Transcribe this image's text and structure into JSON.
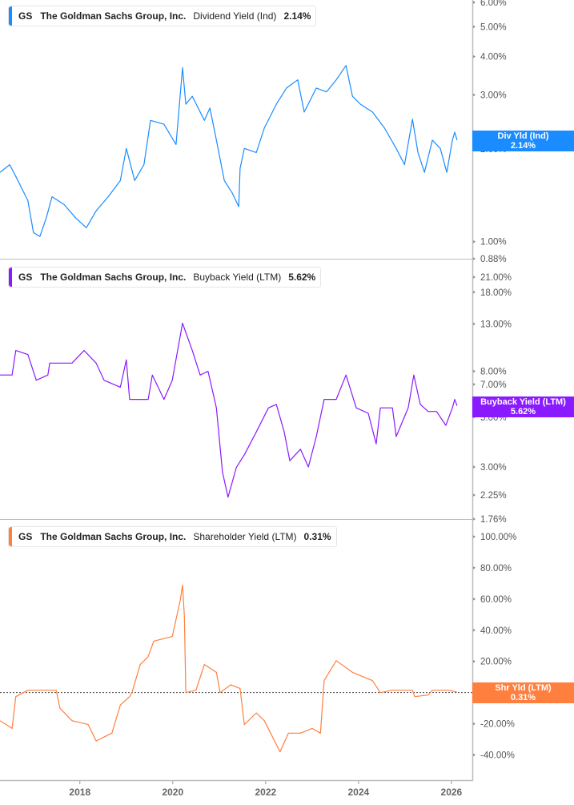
{
  "ticker": "GS",
  "company": "The Goldman Sachs Group, Inc.",
  "chart_data": [
    {
      "type": "line",
      "metric": "Dividend Yield (Ind)",
      "current_value": "2.14%",
      "value_box_label": "Div Yld (Ind)",
      "color": "#1a8cff",
      "y_scale": "log",
      "ylim": [
        0.88,
        6.0
      ],
      "y_ticks": [
        6.0,
        5.0,
        4.0,
        3.0,
        2.0,
        1.0,
        0.88
      ],
      "y_tick_labels": [
        "6.00%",
        "5.00%",
        "4.00%",
        "3.00%",
        "2.00%",
        "1.00%",
        "0.88%"
      ],
      "points": [
        [
          2016.28,
          1.68
        ],
        [
          2016.49,
          1.78
        ],
        [
          2016.62,
          1.63
        ],
        [
          2016.88,
          1.36
        ],
        [
          2017.0,
          1.07
        ],
        [
          2017.14,
          1.04
        ],
        [
          2017.28,
          1.2
        ],
        [
          2017.4,
          1.4
        ],
        [
          2017.66,
          1.32
        ],
        [
          2017.92,
          1.19
        ],
        [
          2018.14,
          1.11
        ],
        [
          2018.35,
          1.26
        ],
        [
          2018.61,
          1.4
        ],
        [
          2018.87,
          1.58
        ],
        [
          2019.0,
          2.01
        ],
        [
          2019.18,
          1.58
        ],
        [
          2019.38,
          1.78
        ],
        [
          2019.52,
          2.48
        ],
        [
          2019.81,
          2.41
        ],
        [
          2020.07,
          2.07
        ],
        [
          2020.21,
          3.68
        ],
        [
          2020.28,
          2.8
        ],
        [
          2020.42,
          2.97
        ],
        [
          2020.68,
          2.48
        ],
        [
          2020.8,
          2.72
        ],
        [
          2020.94,
          2.14
        ],
        [
          2021.11,
          1.58
        ],
        [
          2021.28,
          1.44
        ],
        [
          2021.42,
          1.3
        ],
        [
          2021.45,
          1.73
        ],
        [
          2021.54,
          2.01
        ],
        [
          2021.8,
          1.95
        ],
        [
          2021.97,
          2.34
        ],
        [
          2022.23,
          2.8
        ],
        [
          2022.45,
          3.16
        ],
        [
          2022.69,
          3.36
        ],
        [
          2022.83,
          2.64
        ],
        [
          2023.09,
          3.16
        ],
        [
          2023.31,
          3.07
        ],
        [
          2023.52,
          3.36
        ],
        [
          2023.73,
          3.74
        ],
        [
          2023.87,
          2.97
        ],
        [
          2024.04,
          2.8
        ],
        [
          2024.3,
          2.64
        ],
        [
          2024.56,
          2.34
        ],
        [
          2024.81,
          2.01
        ],
        [
          2024.99,
          1.78
        ],
        [
          2025.16,
          2.5
        ],
        [
          2025.28,
          1.95
        ],
        [
          2025.42,
          1.68
        ],
        [
          2025.59,
          2.14
        ],
        [
          2025.76,
          2.01
        ],
        [
          2025.9,
          1.68
        ],
        [
          2026.02,
          2.14
        ],
        [
          2026.07,
          2.27
        ],
        [
          2026.12,
          2.14
        ]
      ]
    },
    {
      "type": "line",
      "metric": "Buyback Yield (LTM)",
      "current_value": "5.62%",
      "value_box_label": "Buyback Yield (LTM)",
      "color": "#8a1aff",
      "y_scale": "log",
      "ylim": [
        1.76,
        21.0
      ],
      "y_ticks": [
        21.0,
        18.0,
        13.0,
        8.0,
        7.0,
        5.0,
        3.0,
        2.25,
        1.76
      ],
      "y_tick_labels": [
        "21.00%",
        "18.00%",
        "13.00%",
        "8.00%",
        "7.00%",
        "5.00%",
        "3.00%",
        "2.25%",
        "1.76%"
      ],
      "points": [
        [
          2016.28,
          7.7
        ],
        [
          2016.54,
          7.7
        ],
        [
          2016.62,
          9.9
        ],
        [
          2016.88,
          9.5
        ],
        [
          2017.06,
          7.3
        ],
        [
          2017.31,
          7.7
        ],
        [
          2017.35,
          8.7
        ],
        [
          2017.83,
          8.7
        ],
        [
          2018.09,
          9.9
        ],
        [
          2018.35,
          8.7
        ],
        [
          2018.52,
          7.3
        ],
        [
          2018.87,
          6.8
        ],
        [
          2019.0,
          9.0
        ],
        [
          2019.07,
          6.0
        ],
        [
          2019.47,
          6.0
        ],
        [
          2019.56,
          7.7
        ],
        [
          2019.81,
          6.0
        ],
        [
          2019.99,
          7.3
        ],
        [
          2020.21,
          13.1
        ],
        [
          2020.42,
          9.9
        ],
        [
          2020.59,
          7.7
        ],
        [
          2020.76,
          8.0
        ],
        [
          2020.94,
          5.5
        ],
        [
          2021.07,
          2.85
        ],
        [
          2021.19,
          2.2
        ],
        [
          2021.37,
          2.99
        ],
        [
          2021.54,
          3.4
        ],
        [
          2021.8,
          4.3
        ],
        [
          2022.06,
          5.5
        ],
        [
          2022.23,
          5.7
        ],
        [
          2022.4,
          4.3
        ],
        [
          2022.52,
          3.2
        ],
        [
          2022.75,
          3.6
        ],
        [
          2022.92,
          3.0
        ],
        [
          2023.09,
          4.1
        ],
        [
          2023.26,
          6.0
        ],
        [
          2023.52,
          6.0
        ],
        [
          2023.73,
          7.7
        ],
        [
          2023.95,
          5.5
        ],
        [
          2024.21,
          5.2
        ],
        [
          2024.38,
          3.8
        ],
        [
          2024.47,
          5.5
        ],
        [
          2024.73,
          5.5
        ],
        [
          2024.81,
          4.1
        ],
        [
          2025.07,
          5.5
        ],
        [
          2025.19,
          7.7
        ],
        [
          2025.33,
          5.7
        ],
        [
          2025.5,
          5.3
        ],
        [
          2025.68,
          5.3
        ],
        [
          2025.88,
          4.6
        ],
        [
          2026.02,
          5.5
        ],
        [
          2026.07,
          6.0
        ],
        [
          2026.12,
          5.62
        ]
      ]
    },
    {
      "type": "line",
      "metric": "Shareholder Yield (LTM)",
      "current_value": "0.31%",
      "value_box_label": "Shr Yld (LTM)",
      "color": "#ff7f3f",
      "y_scale": "linear",
      "ylim": [
        -50,
        100
      ],
      "y_ticks": [
        100,
        80,
        60,
        40,
        20,
        0,
        -20,
        -40
      ],
      "y_tick_labels": [
        "100.00%",
        "80.00%",
        "60.00%",
        "40.00%",
        "20.00%",
        "0.00%",
        "-20.00%",
        "-40.00%"
      ],
      "zero_line": true,
      "points": [
        [
          2016.28,
          -18
        ],
        [
          2016.54,
          -23
        ],
        [
          2016.62,
          -2.6
        ],
        [
          2016.88,
          1.5
        ],
        [
          2017.49,
          1.5
        ],
        [
          2017.57,
          -10
        ],
        [
          2017.83,
          -18
        ],
        [
          2018.18,
          -20.5
        ],
        [
          2018.35,
          -31
        ],
        [
          2018.69,
          -26
        ],
        [
          2018.87,
          -8
        ],
        [
          2019.07,
          -2.6
        ],
        [
          2019.12,
          0
        ],
        [
          2019.3,
          18
        ],
        [
          2019.47,
          23
        ],
        [
          2019.59,
          33
        ],
        [
          2019.99,
          36
        ],
        [
          2020.16,
          59
        ],
        [
          2020.21,
          69
        ],
        [
          2020.25,
          49
        ],
        [
          2020.28,
          0
        ],
        [
          2020.5,
          1.5
        ],
        [
          2020.68,
          18
        ],
        [
          2020.94,
          13
        ],
        [
          2021.02,
          0
        ],
        [
          2021.25,
          5
        ],
        [
          2021.45,
          2.6
        ],
        [
          2021.54,
          -20.5
        ],
        [
          2021.8,
          -13
        ],
        [
          2021.97,
          -18
        ],
        [
          2022.14,
          -28
        ],
        [
          2022.31,
          -38
        ],
        [
          2022.49,
          -26
        ],
        [
          2022.75,
          -26
        ],
        [
          2023.0,
          -23
        ],
        [
          2023.18,
          -26
        ],
        [
          2023.26,
          7.7
        ],
        [
          2023.52,
          20.5
        ],
        [
          2023.87,
          13
        ],
        [
          2024.3,
          7.7
        ],
        [
          2024.47,
          0
        ],
        [
          2024.73,
          1.5
        ],
        [
          2025.16,
          1.5
        ],
        [
          2025.21,
          -2.6
        ],
        [
          2025.5,
          -1.5
        ],
        [
          2025.59,
          1.5
        ],
        [
          2025.93,
          1.5
        ],
        [
          2026.12,
          0.31
        ]
      ]
    }
  ],
  "x_axis": {
    "xlim": [
      2016.28,
      2026.45
    ],
    "ticks": [
      2018,
      2020,
      2022,
      2024,
      2026
    ],
    "tick_labels": [
      "2018",
      "2020",
      "2022",
      "2024",
      "2026"
    ]
  }
}
